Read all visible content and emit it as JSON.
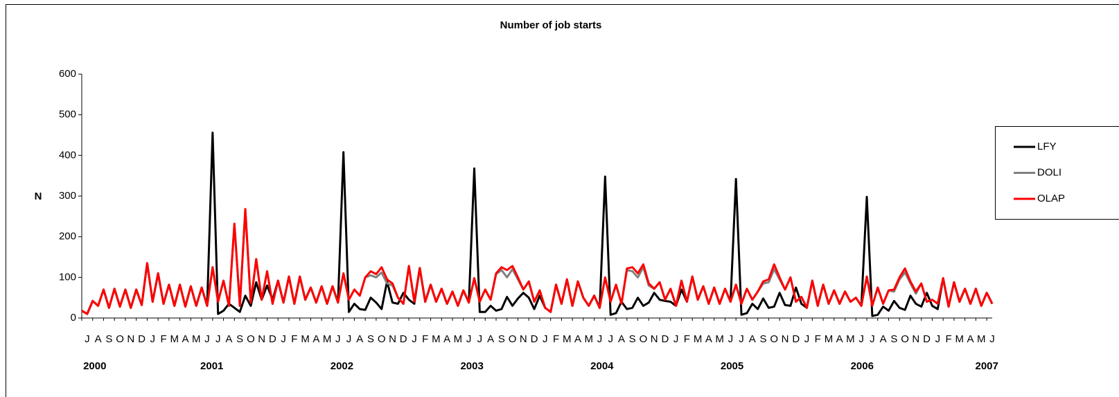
{
  "chart_data": {
    "type": "line",
    "title": "Number of job starts",
    "y_label": "N",
    "ylim": [
      0,
      600
    ],
    "yticks": [
      0,
      100,
      200,
      300,
      400,
      500,
      600
    ],
    "legend": "right",
    "categories": [
      "J",
      null,
      "A",
      null,
      "S",
      null,
      "O",
      null,
      "N",
      null,
      "D",
      null,
      "J",
      null,
      "F",
      null,
      "M",
      null,
      "A",
      null,
      "M",
      null,
      "J",
      null,
      "J",
      null,
      "A",
      null,
      "S",
      null,
      "O",
      null,
      "N",
      null,
      "D",
      null,
      "J",
      null,
      "F",
      null,
      "M",
      null,
      "A",
      null,
      "M",
      null,
      "J",
      null,
      "J",
      null,
      "A",
      null,
      "S",
      null,
      "O",
      null,
      "N",
      null,
      "D",
      null,
      "J",
      null,
      "F",
      null,
      "M",
      null,
      "A",
      null,
      "M",
      null,
      "J",
      null,
      "J",
      null,
      "A",
      null,
      "S",
      null,
      "O",
      null,
      "N",
      null,
      "D",
      null,
      "J",
      null,
      "F",
      null,
      "M",
      null,
      "A",
      null,
      "M",
      null,
      "J",
      null,
      "J",
      null,
      "A",
      null,
      "S",
      null,
      "O",
      null,
      "N",
      null,
      "D",
      null,
      "J",
      null,
      "F",
      null,
      "M",
      null,
      "A",
      null,
      "M",
      null,
      "J",
      null,
      "J",
      null,
      "A",
      null,
      "S",
      null,
      "O",
      null,
      "N",
      null,
      "D",
      null,
      "J",
      null,
      "F",
      null,
      "M",
      null,
      "A",
      null,
      "M",
      null,
      "J",
      null,
      "J",
      null,
      "A",
      null,
      "S",
      null,
      "O",
      null,
      "N",
      null,
      "D",
      null,
      "J",
      null,
      "F",
      null,
      "M",
      null,
      "A",
      null,
      "M",
      null,
      "J",
      null
    ],
    "year_labels": [
      "2000",
      "2001",
      "2002",
      "2003",
      "2004",
      "2005",
      "2006",
      "2007"
    ],
    "series": [
      {
        "name": "LFY",
        "color": "#000000",
        "values": [
          18,
          10,
          42,
          30,
          70,
          25,
          72,
          28,
          70,
          25,
          70,
          32,
          135,
          40,
          110,
          35,
          82,
          30,
          82,
          28,
          78,
          30,
          75,
          30,
          456,
          10,
          18,
          35,
          25,
          15,
          55,
          30,
          88,
          45,
          80,
          45,
          92,
          38,
          102,
          35,
          102,
          45,
          75,
          38,
          78,
          35,
          78,
          38,
          408,
          15,
          35,
          22,
          20,
          50,
          38,
          22,
          90,
          38,
          35,
          62,
          45,
          35,
          123,
          40,
          82,
          40,
          72,
          35,
          65,
          30,
          68,
          38,
          368,
          15,
          15,
          30,
          18,
          22,
          52,
          30,
          48,
          62,
          50,
          22,
          55,
          25,
          15,
          82,
          35,
          95,
          30,
          90,
          50,
          30,
          55,
          25,
          348,
          8,
          12,
          40,
          22,
          25,
          50,
          30,
          38,
          62,
          45,
          42,
          40,
          30,
          70,
          40,
          102,
          45,
          78,
          35,
          75,
          35,
          72,
          40,
          342,
          8,
          12,
          35,
          22,
          48,
          25,
          28,
          62,
          32,
          30,
          75,
          35,
          25,
          92,
          30,
          82,
          35,
          68,
          35,
          65,
          40,
          50,
          30,
          298,
          5,
          8,
          28,
          18,
          42,
          25,
          20,
          55,
          35,
          28,
          62,
          30,
          22,
          98,
          28,
          88,
          40,
          72,
          35,
          72,
          30,
          62,
          35
        ]
      },
      {
        "name": "DOLI",
        "color": "#808080",
        "values": [
          18,
          10,
          42,
          30,
          70,
          25,
          72,
          28,
          70,
          25,
          70,
          32,
          135,
          40,
          110,
          35,
          82,
          30,
          82,
          28,
          78,
          30,
          75,
          30,
          125,
          40,
          92,
          30,
          232,
          30,
          268,
          38,
          145,
          45,
          115,
          35,
          92,
          38,
          102,
          35,
          102,
          45,
          75,
          38,
          78,
          35,
          78,
          38,
          110,
          45,
          70,
          55,
          100,
          105,
          100,
          112,
          85,
          80,
          50,
          35,
          128,
          40,
          123,
          40,
          82,
          40,
          72,
          35,
          65,
          30,
          68,
          38,
          98,
          40,
          70,
          45,
          108,
          118,
          100,
          120,
          95,
          70,
          90,
          40,
          68,
          25,
          15,
          82,
          35,
          95,
          30,
          90,
          50,
          30,
          55,
          25,
          100,
          40,
          82,
          35,
          118,
          115,
          100,
          125,
          80,
          72,
          88,
          45,
          72,
          30,
          92,
          40,
          102,
          45,
          78,
          35,
          75,
          35,
          72,
          40,
          82,
          35,
          72,
          45,
          65,
          85,
          88,
          120,
          95,
          70,
          100,
          40,
          52,
          25,
          92,
          30,
          82,
          35,
          68,
          35,
          65,
          40,
          50,
          30,
          102,
          30,
          75,
          35,
          68,
          65,
          95,
          112,
          85,
          60,
          85,
          40,
          45,
          35,
          98,
          28,
          88,
          40,
          72,
          35,
          72,
          30,
          62,
          35
        ]
      },
      {
        "name": "OLAP",
        "color": "#ff0000",
        "values": [
          18,
          10,
          42,
          30,
          70,
          25,
          72,
          28,
          70,
          25,
          70,
          32,
          135,
          40,
          110,
          35,
          82,
          30,
          82,
          28,
          78,
          30,
          75,
          30,
          125,
          40,
          92,
          30,
          232,
          30,
          268,
          38,
          145,
          45,
          115,
          35,
          92,
          38,
          102,
          35,
          102,
          45,
          75,
          38,
          78,
          35,
          78,
          38,
          110,
          45,
          70,
          55,
          100,
          115,
          108,
          125,
          95,
          85,
          50,
          35,
          128,
          40,
          123,
          40,
          82,
          40,
          72,
          35,
          65,
          30,
          68,
          38,
          98,
          40,
          70,
          45,
          110,
          125,
          118,
          128,
          100,
          70,
          90,
          40,
          68,
          25,
          15,
          82,
          35,
          95,
          30,
          90,
          50,
          30,
          55,
          25,
          100,
          40,
          82,
          35,
          122,
          125,
          110,
          132,
          85,
          72,
          88,
          45,
          72,
          30,
          92,
          40,
          102,
          45,
          78,
          35,
          75,
          35,
          72,
          40,
          82,
          35,
          72,
          45,
          65,
          90,
          95,
          132,
          100,
          70,
          100,
          40,
          52,
          25,
          92,
          30,
          82,
          35,
          68,
          35,
          65,
          40,
          50,
          30,
          102,
          30,
          75,
          35,
          68,
          70,
          100,
          122,
          90,
          65,
          85,
          40,
          45,
          35,
          98,
          28,
          88,
          40,
          72,
          35,
          72,
          30,
          62,
          35
        ]
      }
    ]
  }
}
